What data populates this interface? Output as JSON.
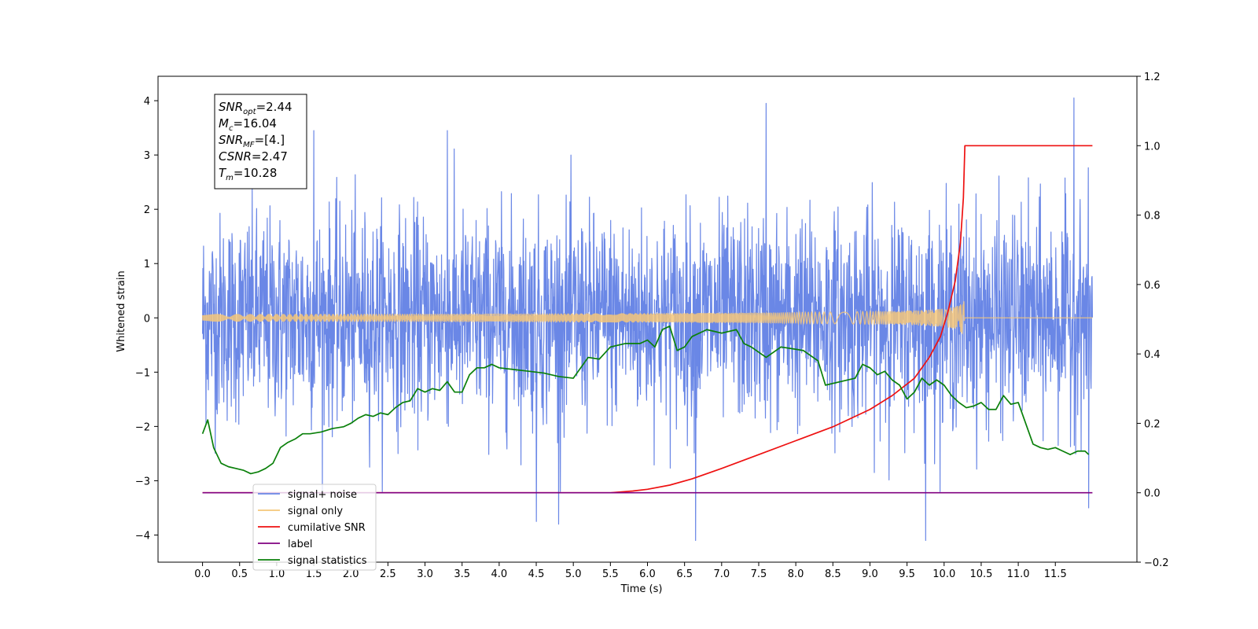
{
  "chart_data": {
    "type": "line",
    "title": "",
    "xlabel": "Time (s)",
    "ylabel": "Whitened strain",
    "xlim": [
      -0.6,
      12.6
    ],
    "ylim": [
      -4.5,
      4.45
    ],
    "y2lim": [
      -0.2,
      1.2
    ],
    "x_ticks": [
      "0.0",
      "0.5",
      "1.0",
      "1.5",
      "2.0",
      "2.5",
      "3.0",
      "3.5",
      "4.0",
      "4.5",
      "5.0",
      "5.5",
      "6.0",
      "6.5",
      "7.0",
      "7.5",
      "8.0",
      "8.5",
      "9.0",
      "9.5",
      "10.0",
      "10.5",
      "11.0",
      "11.5"
    ],
    "y_ticks": [
      "-4",
      "-3",
      "-2",
      "-1",
      "0",
      "1",
      "2",
      "3",
      "4"
    ],
    "y2_ticks": [
      "-0.2",
      "0.0",
      "0.2",
      "0.4",
      "0.6",
      "0.8",
      "1.0",
      "1.2"
    ],
    "grid": false,
    "legend_position": "lower-left",
    "annotation": {
      "lines": [
        {
          "base": "SNR",
          "sub": "opt",
          "value": "=2.44"
        },
        {
          "base": "M",
          "sub": "c",
          "value": "=16.04"
        },
        {
          "base": "SNR",
          "sub": "MF",
          "value": "=[4.]"
        },
        {
          "base": "CSNR",
          "sub": "",
          "value": "=2.47"
        },
        {
          "base": "T",
          "sub": "m",
          "value": "=10.28"
        }
      ]
    },
    "series": [
      {
        "name": "signal+ noise",
        "axis": "left",
        "color": "#6a87e6",
        "kind": "noise",
        "x_range": [
          0.0,
          12.0
        ],
        "envelope_typical": [
          -2.0,
          2.0
        ],
        "extreme_values": [
          {
            "x": 1.5,
            "y": 3.45
          },
          {
            "x": 3.3,
            "y": 3.45
          },
          {
            "x": 4.5,
            "y": -3.75
          },
          {
            "x": 4.8,
            "y": -3.8
          },
          {
            "x": 6.65,
            "y": -4.1
          },
          {
            "x": 7.6,
            "y": 3.95
          },
          {
            "x": 9.75,
            "y": -4.1
          },
          {
            "x": 11.75,
            "y": 4.05
          },
          {
            "x": 11.95,
            "y": -3.5
          }
        ]
      },
      {
        "name": "signal only",
        "axis": "left",
        "color": "#f5c77a",
        "kind": "chirp",
        "x_range": [
          0.0,
          12.0
        ],
        "merger_time": 10.28,
        "peak_amplitude": 0.47
      },
      {
        "name": "cumilative SNR",
        "axis": "right",
        "color": "#ee1111",
        "x": [
          0.0,
          5.0,
          5.5,
          5.8,
          6.0,
          6.3,
          6.6,
          7.0,
          7.5,
          8.0,
          8.5,
          9.0,
          9.3,
          9.6,
          9.8,
          9.95,
          10.05,
          10.15,
          10.22,
          10.26,
          10.28,
          10.3,
          12.0
        ],
        "values": [
          0.0,
          0.0,
          0.0,
          0.005,
          0.01,
          0.022,
          0.04,
          0.07,
          0.11,
          0.15,
          0.19,
          0.24,
          0.28,
          0.33,
          0.39,
          0.45,
          0.52,
          0.61,
          0.72,
          0.85,
          1.0,
          1.0,
          1.0
        ]
      },
      {
        "name": "label",
        "axis": "right",
        "color": "#800080",
        "x": [
          0.0,
          12.0
        ],
        "values": [
          0.0,
          0.0
        ]
      },
      {
        "name": "signal statistics",
        "axis": "right",
        "color": "#0a800a",
        "x": [
          0.0,
          0.07,
          0.15,
          0.25,
          0.35,
          0.45,
          0.55,
          0.65,
          0.75,
          0.85,
          0.95,
          1.05,
          1.15,
          1.25,
          1.35,
          1.45,
          1.6,
          1.75,
          1.9,
          2.0,
          2.1,
          2.2,
          2.3,
          2.4,
          2.5,
          2.6,
          2.7,
          2.8,
          2.9,
          3.0,
          3.1,
          3.2,
          3.3,
          3.4,
          3.5,
          3.6,
          3.7,
          3.8,
          3.9,
          4.0,
          4.2,
          4.4,
          4.6,
          4.8,
          5.0,
          5.2,
          5.35,
          5.5,
          5.7,
          5.9,
          6.0,
          6.1,
          6.2,
          6.3,
          6.4,
          6.5,
          6.6,
          6.8,
          7.0,
          7.2,
          7.3,
          7.4,
          7.6,
          7.8,
          7.95,
          8.1,
          8.3,
          8.4,
          8.6,
          8.8,
          8.9,
          9.0,
          9.1,
          9.2,
          9.3,
          9.4,
          9.5,
          9.6,
          9.7,
          9.8,
          9.9,
          10.0,
          10.1,
          10.2,
          10.3,
          10.4,
          10.5,
          10.6,
          10.7,
          10.8,
          10.9,
          11.0,
          11.1,
          11.2,
          11.3,
          11.4,
          11.5,
          11.6,
          11.7,
          11.8,
          11.9,
          11.95
        ],
        "values": [
          0.17,
          0.21,
          0.13,
          0.085,
          0.075,
          0.07,
          0.065,
          0.055,
          0.06,
          0.07,
          0.085,
          0.13,
          0.145,
          0.155,
          0.17,
          0.17,
          0.175,
          0.185,
          0.19,
          0.2,
          0.215,
          0.225,
          0.22,
          0.23,
          0.225,
          0.245,
          0.26,
          0.265,
          0.3,
          0.29,
          0.3,
          0.295,
          0.32,
          0.29,
          0.29,
          0.34,
          0.36,
          0.36,
          0.37,
          0.36,
          0.355,
          0.35,
          0.345,
          0.335,
          0.33,
          0.39,
          0.385,
          0.42,
          0.43,
          0.43,
          0.44,
          0.42,
          0.47,
          0.48,
          0.41,
          0.42,
          0.45,
          0.47,
          0.46,
          0.47,
          0.43,
          0.42,
          0.39,
          0.42,
          0.415,
          0.41,
          0.38,
          0.31,
          0.32,
          0.33,
          0.37,
          0.36,
          0.34,
          0.35,
          0.325,
          0.31,
          0.27,
          0.29,
          0.33,
          0.31,
          0.325,
          0.31,
          0.28,
          0.26,
          0.245,
          0.25,
          0.26,
          0.24,
          0.24,
          0.28,
          0.255,
          0.26,
          0.2,
          0.14,
          0.13,
          0.125,
          0.13,
          0.12,
          0.11,
          0.12,
          0.12,
          0.11
        ]
      }
    ],
    "legend": [
      {
        "label": "signal+ noise",
        "color": "#6a87e6"
      },
      {
        "label": "signal only",
        "color": "#f5c77a"
      },
      {
        "label": "cumilative SNR",
        "color": "#ee1111"
      },
      {
        "label": "label",
        "color": "#800080"
      },
      {
        "label": "signal statistics",
        "color": "#0a800a"
      }
    ]
  }
}
